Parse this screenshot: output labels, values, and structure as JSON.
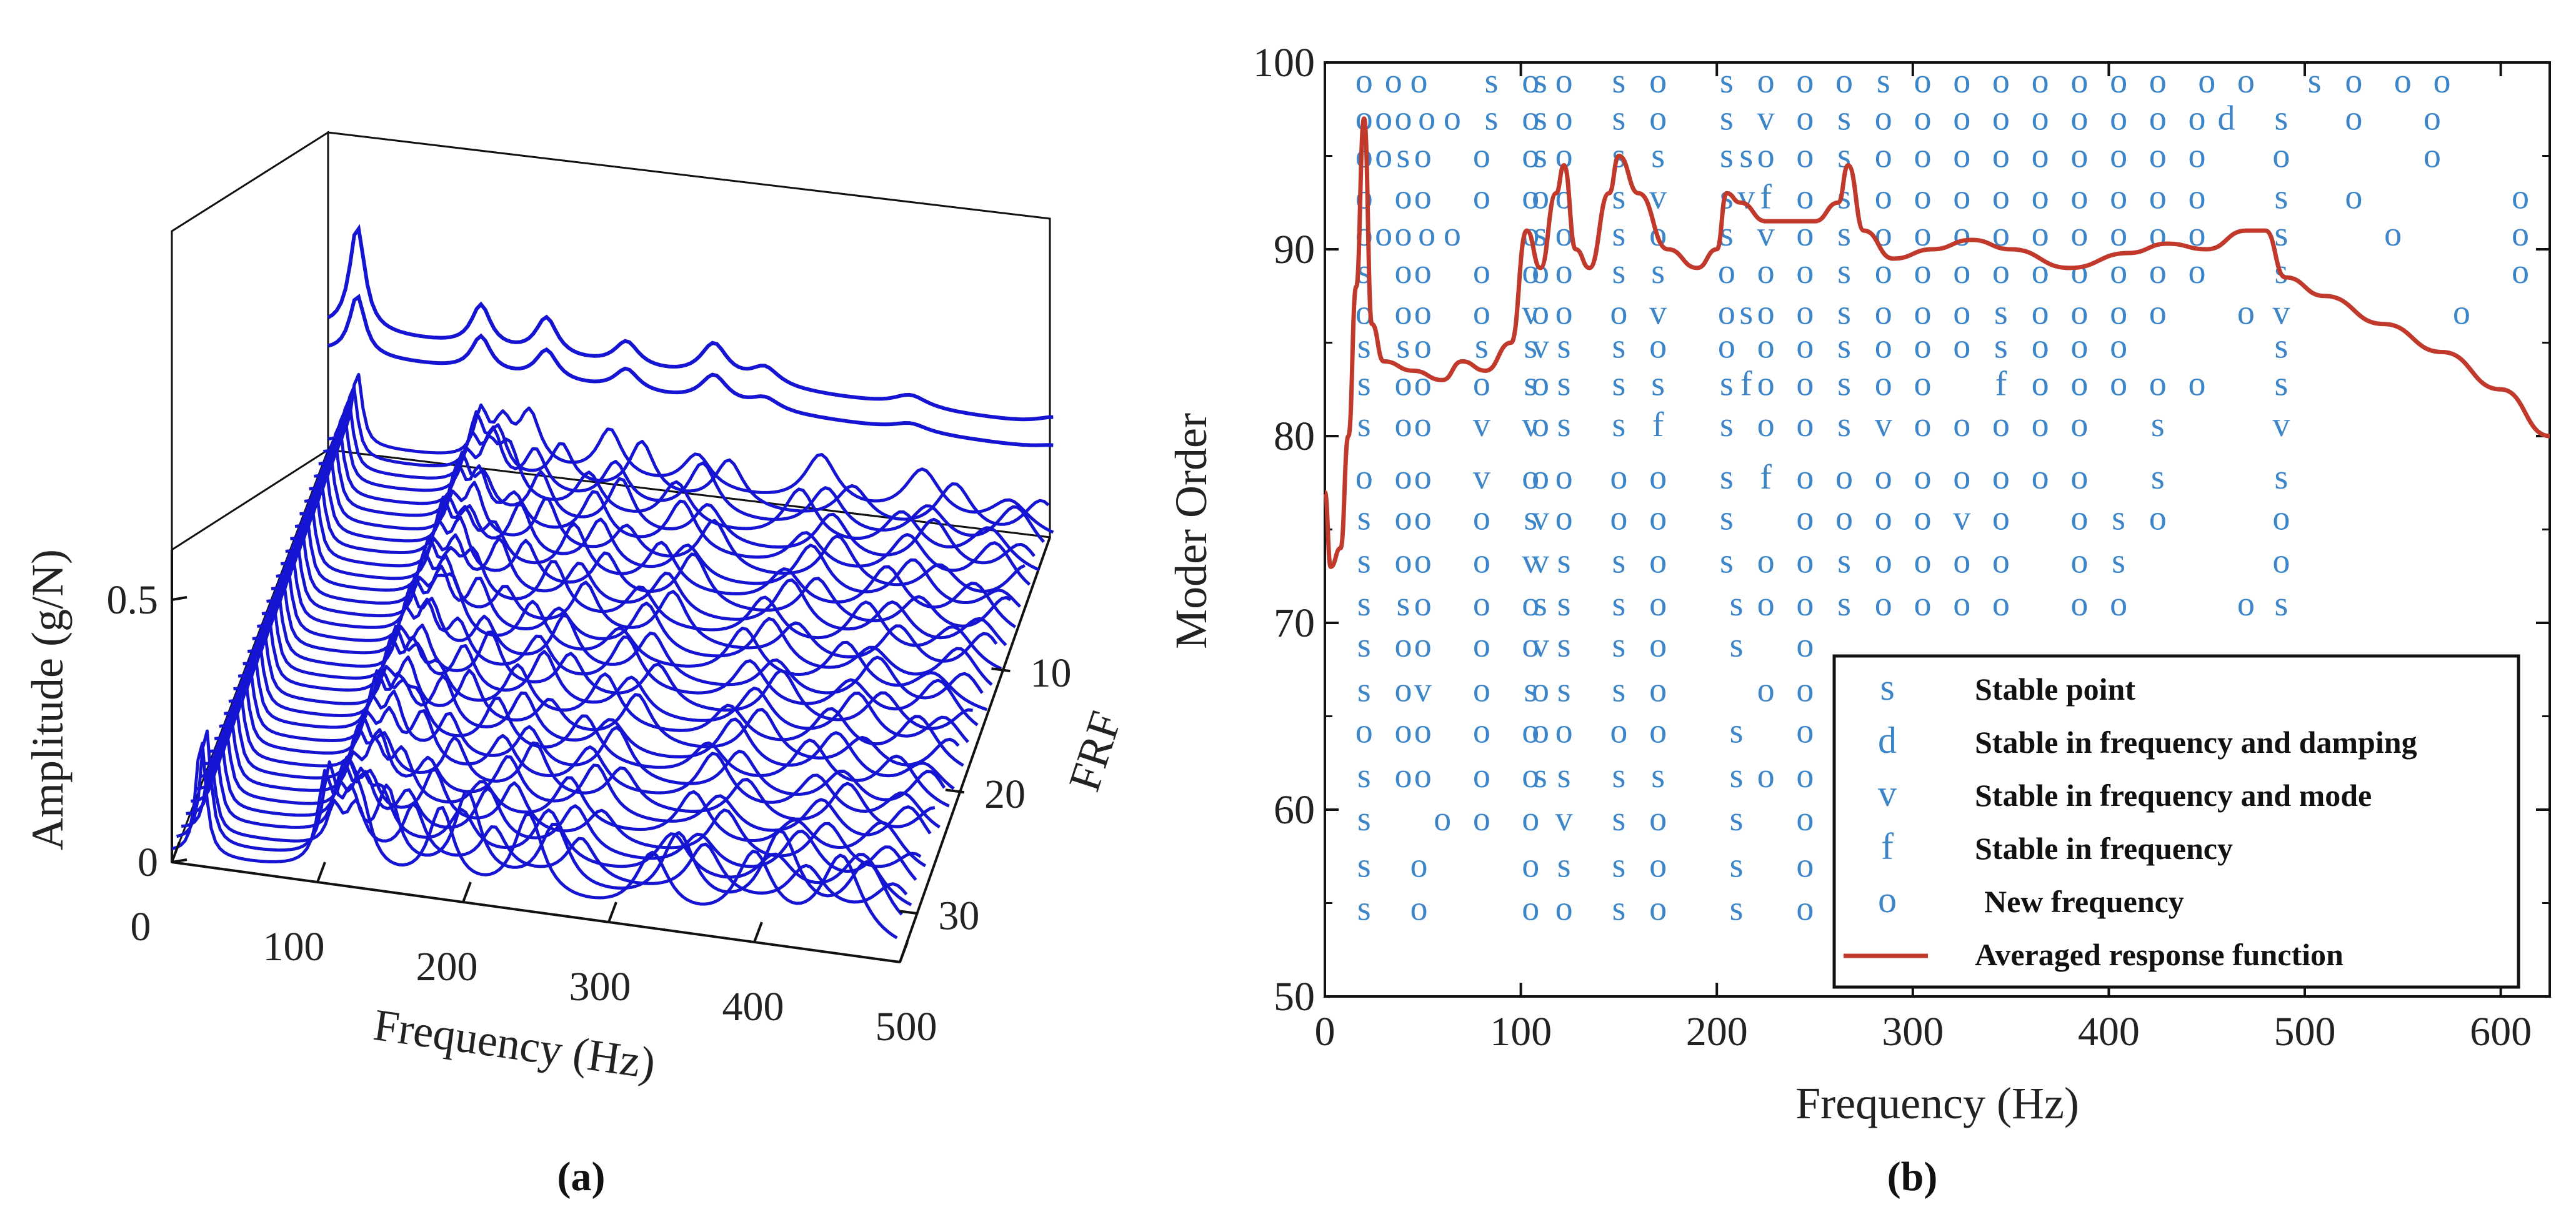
{
  "chart_data": [
    {
      "panel": "(a)",
      "type": "waterfall-3d-line",
      "xlabel": "Frequency (Hz)",
      "ylabel": "FRF",
      "zlabel": "Amplitude (g/N)",
      "x_ticks": [
        "0",
        "100",
        "200",
        "300",
        "400",
        "500"
      ],
      "y_ticks": [
        "10",
        "20",
        "30"
      ],
      "z_ticks": [
        "0",
        "0.5"
      ],
      "x_range": [
        0,
        500
      ],
      "frf_count": 34,
      "line_color": "#1414d2",
      "peak_frequencies_hz": [
        20,
        105,
        120,
        150,
        205,
        265,
        350,
        420,
        480
      ],
      "traces": [
        [
          [
            20,
            1.05
          ],
          [
            105,
            0.42
          ],
          [
            150,
            0.38
          ],
          [
            205,
            0.25
          ],
          [
            265,
            0.35
          ],
          [
            300,
            0.18
          ],
          [
            400,
            0.12
          ],
          [
            500,
            0.1
          ]
        ],
        [
          [
            20,
            0.6
          ],
          [
            105,
            0.35
          ],
          [
            150,
            0.3
          ],
          [
            205,
            0.22
          ],
          [
            265,
            0.28
          ],
          [
            300,
            0.12
          ],
          [
            400,
            0.08
          ],
          [
            500,
            0.06
          ]
        ]
      ]
    },
    {
      "panel": "(b)",
      "type": "stabilization-diagram",
      "title": "",
      "xlabel": "Frequency (Hz)",
      "ylabel": "Moder Order",
      "xlim": [
        0,
        625
      ],
      "ylim": [
        50,
        100
      ],
      "x_ticks": [
        "0",
        "100",
        "200",
        "300",
        "400",
        "500",
        "600"
      ],
      "y_ticks": [
        "50",
        "60",
        "70",
        "80",
        "90",
        "100"
      ],
      "marker_color": "#3c85c8",
      "line_color": "#c0392b",
      "legend": {
        "position": "bottom-right",
        "entries": [
          {
            "symbol": "s",
            "label": "Stable point"
          },
          {
            "symbol": "d",
            "label": "Stable in frequency and damping"
          },
          {
            "symbol": "v",
            "label": "Stable in frequency and mode"
          },
          {
            "symbol": "f",
            "label": "Stable in frequency"
          },
          {
            "symbol": "o",
            "label": "New frequency"
          },
          {
            "symbol": "line",
            "label": "Averaged response function"
          }
        ]
      },
      "rows": [
        {
          "order": 99,
          "marks": "o@20 o@35 o@48 s@85 o@105 s@110 o@122 s@150 o@170 s@205 o@225 o@245 o@265 s@285 o@305 o@325 o@345 o@365 o@385 o@405 o@425 o@450 o@470 s@505 o@525 o@550 o@570"
        },
        {
          "order": 97,
          "marks": "o@20 o@30 o@40 o@52 o@65 s@85 o@105 s@110 o@122 s@150 o@170 s@205 v@225 o@245 s@265 o@285 o@305 o@325 o@345 o@365 o@385 o@405 o@425 o@445 d@460 s@488 o@525 o@565"
        },
        {
          "order": 95,
          "marks": "o@20 o@30 s@40 o@50 o@80 o@105 s@110 o@122 s@150 s@170 s@205 s@215 o@225 o@245 s@265 o@285 o@305 o@325 o@345 o@365 o@385 o@405 o@425 o@445 o@488 o@565"
        },
        {
          "order": 92.8,
          "marks": "o@20 o@40 o@50 o@80 o@105 o@110 o@122 s@150 v@170 s@205 v@215 f@225 o@245 s@265 o@285 o@305 o@325 o@345 o@365 o@385 o@405 o@425 o@445 s@488 o@525 o@610"
        },
        {
          "order": 90.8,
          "marks": "o@20 o@30 o@40 o@52 o@65 o@105 s@110 o@122 s@150 o@170 s@205 v@225 o@245 s@265 o@285 o@305 o@325 o@345 o@365 o@385 o@405 o@425 o@445 s@488 o@545 o@610"
        },
        {
          "order": 88.8,
          "marks": "s@20 o@40 o@50 o@80 o@105 o@110 o@122 s@150 s@170 o@205 o@225 o@245 s@265 o@285 o@305 o@325 o@345 o@365 o@385 o@405 o@425 o@445 s@488 o@610"
        },
        {
          "order": 86.6,
          "marks": "o@20 o@40 o@50 o@80 v@105 o@110 o@122 o@150 v@170 o@205 s@215 o@225 o@245 s@265 o@285 o@305 o@325 s@345 o@365 o@385 o@405 o@425 o@470 v@488 o@580"
        },
        {
          "order": 84.8,
          "marks": "s@20 s@40 o@50 s@80 s@105 v@110 s@122 s@150 o@170 o@205 o@225 o@245 s@265 o@285 o@305 o@325 s@345 o@365 o@385 o@405 s@488"
        },
        {
          "order": 82.8,
          "marks": "s@20 o@40 o@50 o@80 s@105 o@110 s@122 s@150 s@170 s@205 f@215 o@225 o@245 s@265 o@285 o@305 f@345 o@365 o@385 o@405 o@425 o@445 s@488"
        },
        {
          "order": 80.6,
          "marks": "s@20 o@40 o@50 v@80 v@105 o@110 s@122 s@150 f@170 s@205 o@225 o@245 s@265 v@285 o@305 o@325 o@345 o@365 o@385 s@425 v@488"
        },
        {
          "order": 77.8,
          "marks": "o@20 o@40 o@50 v@80 o@105 o@110 o@122 o@150 o@170 s@205 f@225 o@245 o@265 o@285 o@305 o@325 o@345 o@365 o@385 s@425 s@488"
        },
        {
          "order": 75.6,
          "marks": "s@20 o@40 o@50 o@80 s@105 v@110 o@122 o@150 o@170 s@205 o@245 o@265 o@285 o@305 v@325 o@345 o@385 s@405 o@425 o@488"
        },
        {
          "order": 73.3,
          "marks": "s@20 o@40 o@50 o@80 v@105 v@110 s@122 s@150 o@170 s@205 o@225 o@245 s@265 o@285 o@305 o@325 o@345 o@385 s@405 o@488"
        },
        {
          "order": 71.0,
          "marks": "s@20 s@40 o@50 o@80 o@105 s@110 s@122 s@150 o@170 s@210 o@225 o@245 s@265 o@285 o@305 o@325 o@345 o@385 o@405 o@470 s@488"
        },
        {
          "order": 68.8,
          "marks": "s@20 o@40 o@50 o@80 o@105 v@110 s@122 s@150 o@170 s@210 o@245"
        },
        {
          "order": 66.4,
          "marks": "s@20 o@40 v@50 o@80 s@105 o@110 s@122 s@150 o@170 o@225 o@245 o@265"
        },
        {
          "order": 64.2,
          "marks": "o@20 o@40 o@50 o@80 o@105 o@110 o@122 o@150 o@170 s@210 o@245"
        },
        {
          "order": 61.8,
          "marks": "s@20 o@40 o@50 o@80 o@105 s@110 s@122 s@150 s@170 s@210 o@225 o@245"
        },
        {
          "order": 59.5,
          "marks": "s@20 o@60 o@80 o@105 v@122 s@150 o@170 s@210 o@245"
        },
        {
          "order": 57.0,
          "marks": "s@20 o@48 o@105 s@122 s@150 o@170 s@210 o@245"
        },
        {
          "order": 54.7,
          "marks": "s@20 o@48 o@105 o@122 s@150 o@170 s@210 o@245"
        }
      ],
      "averaged_response_function": [
        [
          0,
          77
        ],
        [
          3,
          73
        ],
        [
          8,
          74
        ],
        [
          12,
          80
        ],
        [
          16,
          88
        ],
        [
          20,
          97
        ],
        [
          24,
          86
        ],
        [
          30,
          84
        ],
        [
          45,
          83.5
        ],
        [
          60,
          83
        ],
        [
          70,
          84
        ],
        [
          82,
          83.5
        ],
        [
          95,
          85
        ],
        [
          103,
          91
        ],
        [
          110,
          89
        ],
        [
          118,
          93
        ],
        [
          122,
          94.5
        ],
        [
          128,
          90
        ],
        [
          135,
          89
        ],
        [
          145,
          93
        ],
        [
          150,
          95
        ],
        [
          160,
          93
        ],
        [
          175,
          90
        ],
        [
          190,
          89
        ],
        [
          200,
          90
        ],
        [
          205,
          93
        ],
        [
          212,
          92.5
        ],
        [
          225,
          91.5
        ],
        [
          250,
          91.5
        ],
        [
          262,
          92.5
        ],
        [
          267,
          94.5
        ],
        [
          275,
          91
        ],
        [
          290,
          89.5
        ],
        [
          310,
          90
        ],
        [
          330,
          90.5
        ],
        [
          350,
          90
        ],
        [
          380,
          89
        ],
        [
          410,
          89.8
        ],
        [
          430,
          90.3
        ],
        [
          450,
          90
        ],
        [
          470,
          91
        ],
        [
          480,
          91
        ],
        [
          490,
          88.5
        ],
        [
          510,
          87.5
        ],
        [
          540,
          86
        ],
        [
          570,
          84.5
        ],
        [
          600,
          82.5
        ],
        [
          625,
          80
        ]
      ]
    }
  ],
  "labels": {
    "panel_a": "(a)",
    "panel_b": "(b)"
  }
}
